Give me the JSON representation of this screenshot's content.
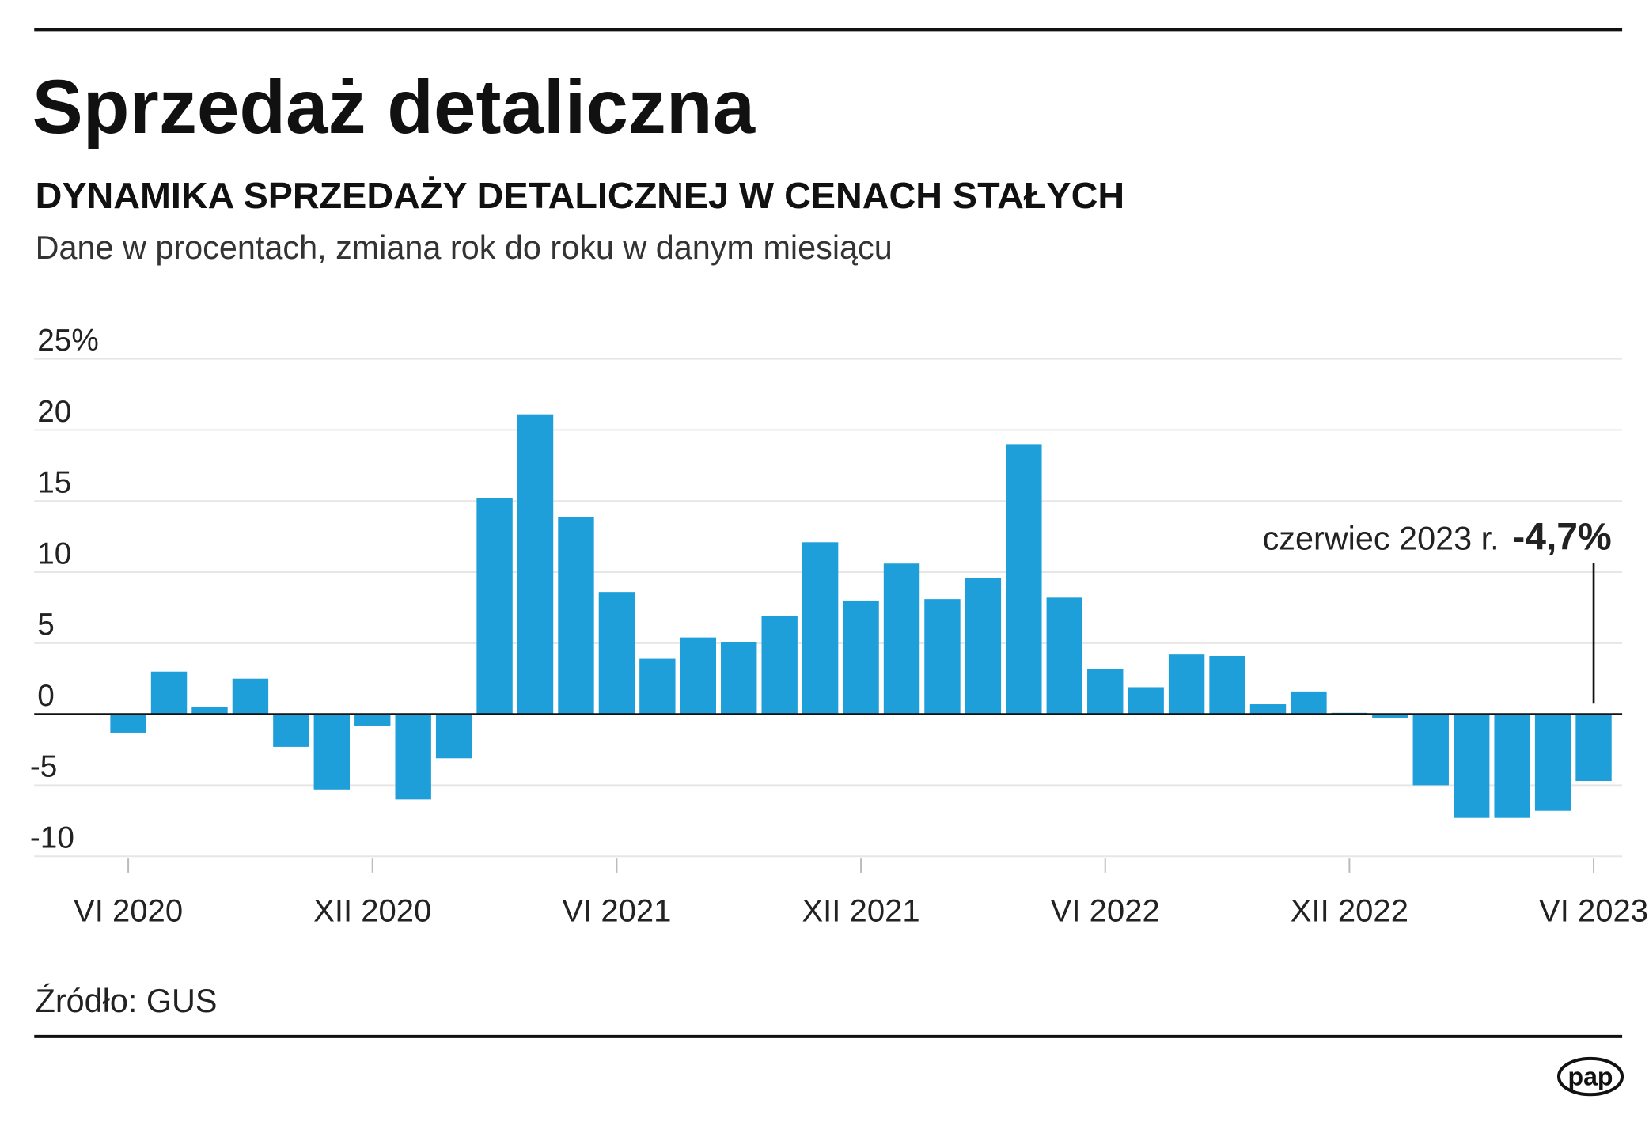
{
  "title": "Sprzedaż detaliczna",
  "subtitle": "DYNAMIKA SPRZEDAŻY DETALICZNEJ W CENACH STAŁYCH",
  "description": "Dane w procentach, zmiana rok do roku w danym miesiącu",
  "source": "Źródło: GUS",
  "logo_text": "pap",
  "annotation": {
    "label": "czerwiec 2023 r.",
    "value": "-4,7%"
  },
  "colors": {
    "bar": "#1e9fda",
    "text": "#111111",
    "grid": "#e6e6e6"
  },
  "chart_data": {
    "type": "bar",
    "title": "DYNAMIKA SPRZEDAŻY DETALICZNEJ W CENACH STAŁYCH",
    "xlabel": "",
    "ylabel": "%",
    "ylim": [
      -10,
      25
    ],
    "yticks": [
      "25%",
      "20",
      "15",
      "10",
      "5",
      "0",
      "-5",
      "-10"
    ],
    "ytick_values": [
      25,
      20,
      15,
      10,
      5,
      0,
      -5,
      -10
    ],
    "xtick_labels": [
      "VI 2020",
      "XII 2020",
      "VI 2021",
      "XII 2021",
      "VI 2022",
      "XII 2022",
      "VI 2023"
    ],
    "xtick_indices": [
      0,
      6,
      12,
      18,
      24,
      30,
      36
    ],
    "grid": true,
    "categories": [
      "VI 2020",
      "VII 2020",
      "VIII 2020",
      "IX 2020",
      "X 2020",
      "XI 2020",
      "XII 2020",
      "I 2021",
      "II 2021",
      "III 2021",
      "IV 2021",
      "V 2021",
      "VI 2021",
      "VII 2021",
      "VIII 2021",
      "IX 2021",
      "X 2021",
      "XI 2021",
      "XII 2021",
      "I 2022",
      "II 2022",
      "III 2022",
      "IV 2022",
      "V 2022",
      "VI 2022",
      "VII 2022",
      "VIII 2022",
      "IX 2022",
      "X 2022",
      "XI 2022",
      "XII 2022",
      "I 2023",
      "II 2023",
      "III 2023",
      "IV 2023",
      "V 2023",
      "VI 2023"
    ],
    "values": [
      -1.3,
      3.0,
      0.5,
      2.5,
      -2.3,
      -5.3,
      -0.8,
      -6.0,
      -3.1,
      15.2,
      21.1,
      13.9,
      8.6,
      3.9,
      5.4,
      5.1,
      6.9,
      12.1,
      8.0,
      10.6,
      8.1,
      9.6,
      19.0,
      8.2,
      3.2,
      1.9,
      4.2,
      4.1,
      0.7,
      1.6,
      0.1,
      -0.3,
      -5.0,
      -7.3,
      -7.3,
      -6.8,
      -4.7
    ]
  }
}
